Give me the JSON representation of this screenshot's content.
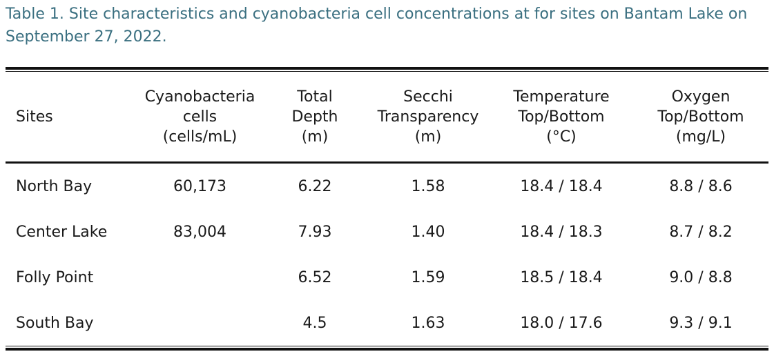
{
  "caption": "Table 1.  Site characteristics and cyanobacteria cell concentrations at for sites on Bantam Lake on September 27, 2022.",
  "table": {
    "headers": [
      {
        "lines": [
          "Sites"
        ]
      },
      {
        "lines": [
          "Cyanobacteria",
          "cells",
          "(cells/mL)"
        ]
      },
      {
        "lines": [
          "Total",
          "Depth",
          "(m)"
        ]
      },
      {
        "lines": [
          "Secchi",
          "Transparency",
          "(m)"
        ]
      },
      {
        "lines": [
          "Temperature",
          "Top/Bottom",
          "(°C)"
        ]
      },
      {
        "lines": [
          "Oxygen",
          "Top/Bottom",
          "(mg/L)"
        ]
      }
    ],
    "rows": [
      [
        "North Bay",
        "60,173",
        "6.22",
        "1.58",
        "18.4 / 18.4",
        "8.8 / 8.6"
      ],
      [
        "Center Lake",
        "83,004",
        "7.93",
        "1.40",
        "18.4 / 18.3",
        "8.7 / 8.2"
      ],
      [
        "Folly Point",
        "",
        "6.52",
        "1.59",
        "18.5 / 18.4",
        "9.0 / 8.8"
      ],
      [
        "South Bay",
        "",
        "4.5",
        "1.63",
        "18.0 / 17.6",
        "9.3 / 9.1"
      ]
    ]
  },
  "colors": {
    "caption": "#3a6f80",
    "text": "#1a1a1a",
    "rules": "#111111"
  }
}
